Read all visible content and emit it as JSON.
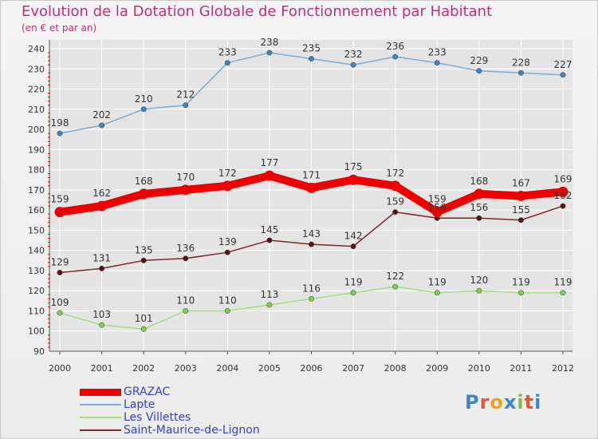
{
  "page": {
    "title": "Evolution de la Dotation Globale de Fonctionnement par Habitant",
    "subtitle": "(en € et par an)",
    "logo": "Proxiti"
  },
  "colors": {
    "title": "#c0307a",
    "grid": "#ffffff",
    "axis_text": "#333333"
  },
  "chart_data": {
    "type": "line",
    "title": "Evolution de la Dotation Globale de Fonctionnement par Habitant",
    "subtitle": "(en € et par an)",
    "xlabel": "",
    "ylabel": "",
    "ylim": [
      90,
      240
    ],
    "yticks": [
      90,
      100,
      110,
      120,
      130,
      140,
      150,
      160,
      170,
      180,
      190,
      200,
      210,
      220,
      230,
      240
    ],
    "grid": true,
    "legend_position": "bottom-left",
    "x": [
      "2000",
      "2001",
      "2002",
      "2003",
      "2004",
      "2005",
      "2006",
      "2007",
      "2008",
      "2009",
      "2010",
      "2011",
      "2012"
    ],
    "series": [
      {
        "name": "GRAZAC",
        "color": "#ee0000",
        "marker": "#ee0000",
        "emphasis": true,
        "values": [
          159,
          162,
          168,
          170,
          172,
          177,
          171,
          175,
          172,
          159,
          168,
          167,
          169
        ]
      },
      {
        "name": "Lapte",
        "color": "#7aaed6",
        "marker": "#3a86c8",
        "emphasis": false,
        "values": [
          198,
          202,
          210,
          212,
          233,
          238,
          235,
          232,
          236,
          233,
          229,
          228,
          227
        ]
      },
      {
        "name": "Les Villettes",
        "color": "#a6dc84",
        "marker": "#7fcf4a",
        "emphasis": false,
        "values": [
          109,
          103,
          101,
          110,
          110,
          113,
          116,
          119,
          122,
          119,
          120,
          119,
          119
        ]
      },
      {
        "name": "Saint-Maurice-de-Lignon",
        "color": "#7a2a2a",
        "marker": "#5a1414",
        "emphasis": false,
        "values": [
          129,
          131,
          135,
          136,
          139,
          145,
          143,
          142,
          159,
          156,
          156,
          155,
          162
        ]
      }
    ]
  }
}
